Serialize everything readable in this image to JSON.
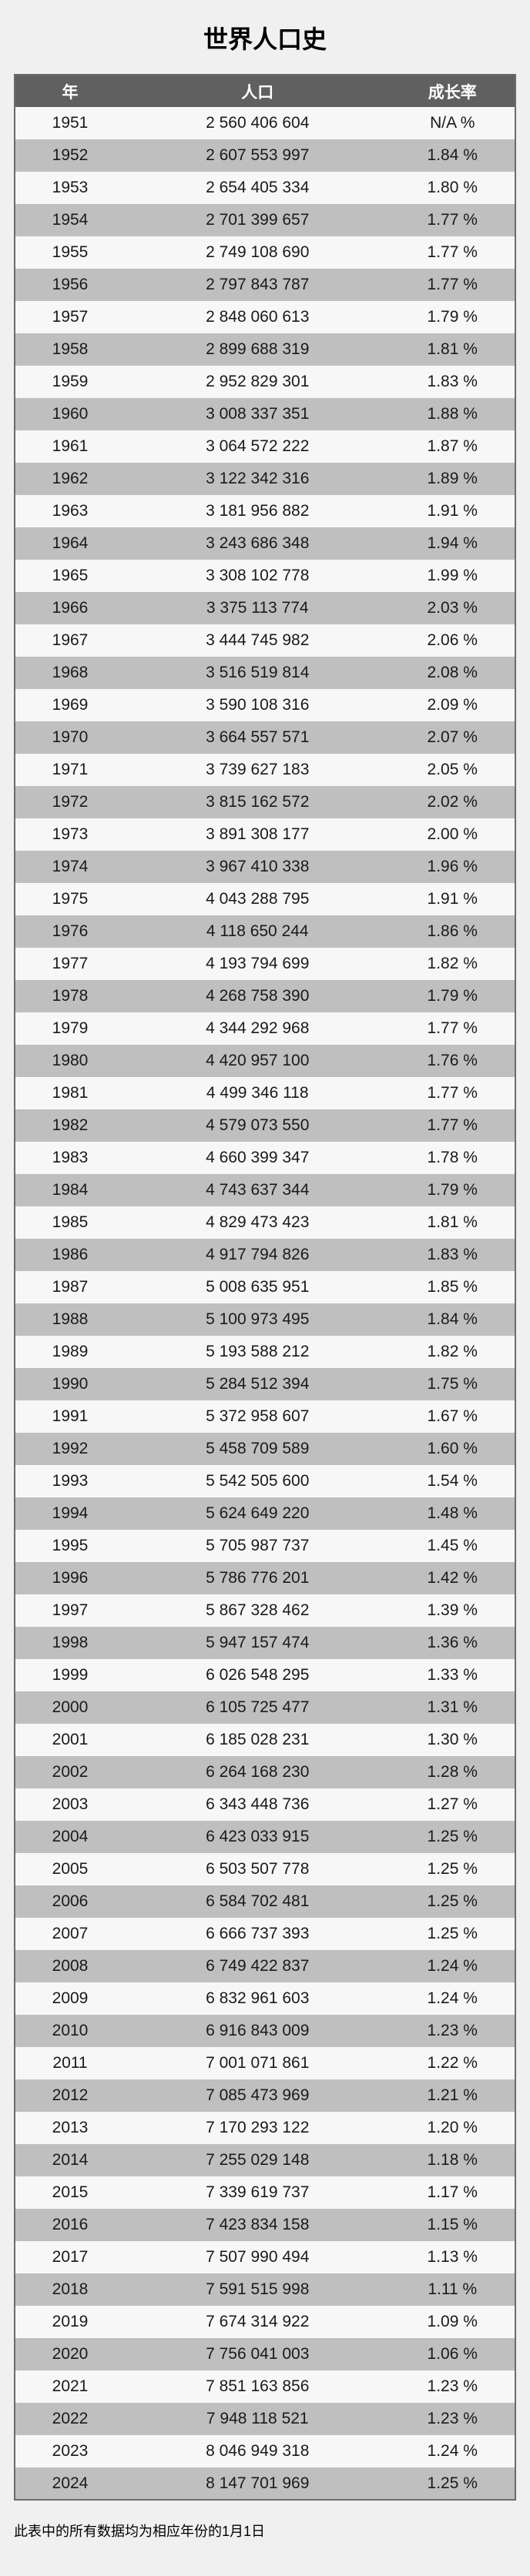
{
  "page": {
    "title": "世界人口史",
    "footnote": "此表中的所有数据均为相应年份的1月1日"
  },
  "colors": {
    "page_bg": "#f0f0f0",
    "header_bg": "#606060",
    "header_text": "#ffffff",
    "row_light": "#f7f7f7",
    "row_dark": "#bfbfbf",
    "border": "#6b6b6b",
    "text": "#1a1a1a"
  },
  "table": {
    "columns": [
      "年",
      "人口",
      "成长率"
    ],
    "rows": [
      {
        "year": "1951",
        "population": "2 560 406 604",
        "growth": "N/A %"
      },
      {
        "year": "1952",
        "population": "2 607 553 997",
        "growth": "1.84 %"
      },
      {
        "year": "1953",
        "population": "2 654 405 334",
        "growth": "1.80 %"
      },
      {
        "year": "1954",
        "population": "2 701 399 657",
        "growth": "1.77 %"
      },
      {
        "year": "1955",
        "population": "2 749 108 690",
        "growth": "1.77 %"
      },
      {
        "year": "1956",
        "population": "2 797 843 787",
        "growth": "1.77 %"
      },
      {
        "year": "1957",
        "population": "2 848 060 613",
        "growth": "1.79 %"
      },
      {
        "year": "1958",
        "population": "2 899 688 319",
        "growth": "1.81 %"
      },
      {
        "year": "1959",
        "population": "2 952 829 301",
        "growth": "1.83 %"
      },
      {
        "year": "1960",
        "population": "3 008 337 351",
        "growth": "1.88 %"
      },
      {
        "year": "1961",
        "population": "3 064 572 222",
        "growth": "1.87 %"
      },
      {
        "year": "1962",
        "population": "3 122 342 316",
        "growth": "1.89 %"
      },
      {
        "year": "1963",
        "population": "3 181 956 882",
        "growth": "1.91 %"
      },
      {
        "year": "1964",
        "population": "3 243 686 348",
        "growth": "1.94 %"
      },
      {
        "year": "1965",
        "population": "3 308 102 778",
        "growth": "1.99 %"
      },
      {
        "year": "1966",
        "population": "3 375 113 774",
        "growth": "2.03 %"
      },
      {
        "year": "1967",
        "population": "3 444 745 982",
        "growth": "2.06 %"
      },
      {
        "year": "1968",
        "population": "3 516 519 814",
        "growth": "2.08 %"
      },
      {
        "year": "1969",
        "population": "3 590 108 316",
        "growth": "2.09 %"
      },
      {
        "year": "1970",
        "population": "3 664 557 571",
        "growth": "2.07 %"
      },
      {
        "year": "1971",
        "population": "3 739 627 183",
        "growth": "2.05 %"
      },
      {
        "year": "1972",
        "population": "3 815 162 572",
        "growth": "2.02 %"
      },
      {
        "year": "1973",
        "population": "3 891 308 177",
        "growth": "2.00 %"
      },
      {
        "year": "1974",
        "population": "3 967 410 338",
        "growth": "1.96 %"
      },
      {
        "year": "1975",
        "population": "4 043 288 795",
        "growth": "1.91 %"
      },
      {
        "year": "1976",
        "population": "4 118 650 244",
        "growth": "1.86 %"
      },
      {
        "year": "1977",
        "population": "4 193 794 699",
        "growth": "1.82 %"
      },
      {
        "year": "1978",
        "population": "4 268 758 390",
        "growth": "1.79 %"
      },
      {
        "year": "1979",
        "population": "4 344 292 968",
        "growth": "1.77 %"
      },
      {
        "year": "1980",
        "population": "4 420 957 100",
        "growth": "1.76 %"
      },
      {
        "year": "1981",
        "population": "4 499 346 118",
        "growth": "1.77 %"
      },
      {
        "year": "1982",
        "population": "4 579 073 550",
        "growth": "1.77 %"
      },
      {
        "year": "1983",
        "population": "4 660 399 347",
        "growth": "1.78 %"
      },
      {
        "year": "1984",
        "population": "4 743 637 344",
        "growth": "1.79 %"
      },
      {
        "year": "1985",
        "population": "4 829 473 423",
        "growth": "1.81 %"
      },
      {
        "year": "1986",
        "population": "4 917 794 826",
        "growth": "1.83 %"
      },
      {
        "year": "1987",
        "population": "5 008 635 951",
        "growth": "1.85 %"
      },
      {
        "year": "1988",
        "population": "5 100 973 495",
        "growth": "1.84 %"
      },
      {
        "year": "1989",
        "population": "5 193 588 212",
        "growth": "1.82 %"
      },
      {
        "year": "1990",
        "population": "5 284 512 394",
        "growth": "1.75 %"
      },
      {
        "year": "1991",
        "population": "5 372 958 607",
        "growth": "1.67 %"
      },
      {
        "year": "1992",
        "population": "5 458 709 589",
        "growth": "1.60 %"
      },
      {
        "year": "1993",
        "population": "5 542 505 600",
        "growth": "1.54 %"
      },
      {
        "year": "1994",
        "population": "5 624 649 220",
        "growth": "1.48 %"
      },
      {
        "year": "1995",
        "population": "5 705 987 737",
        "growth": "1.45 %"
      },
      {
        "year": "1996",
        "population": "5 786 776 201",
        "growth": "1.42 %"
      },
      {
        "year": "1997",
        "population": "5 867 328 462",
        "growth": "1.39 %"
      },
      {
        "year": "1998",
        "population": "5 947 157 474",
        "growth": "1.36 %"
      },
      {
        "year": "1999",
        "population": "6 026 548 295",
        "growth": "1.33 %"
      },
      {
        "year": "2000",
        "population": "6 105 725 477",
        "growth": "1.31 %"
      },
      {
        "year": "2001",
        "population": "6 185 028 231",
        "growth": "1.30 %"
      },
      {
        "year": "2002",
        "population": "6 264 168 230",
        "growth": "1.28 %"
      },
      {
        "year": "2003",
        "population": "6 343 448 736",
        "growth": "1.27 %"
      },
      {
        "year": "2004",
        "population": "6 423 033 915",
        "growth": "1.25 %"
      },
      {
        "year": "2005",
        "population": "6 503 507 778",
        "growth": "1.25 %"
      },
      {
        "year": "2006",
        "population": "6 584 702 481",
        "growth": "1.25 %"
      },
      {
        "year": "2007",
        "population": "6 666 737 393",
        "growth": "1.25 %"
      },
      {
        "year": "2008",
        "population": "6 749 422 837",
        "growth": "1.24 %"
      },
      {
        "year": "2009",
        "population": "6 832 961 603",
        "growth": "1.24 %"
      },
      {
        "year": "2010",
        "population": "6 916 843 009",
        "growth": "1.23 %"
      },
      {
        "year": "2011",
        "population": "7 001 071 861",
        "growth": "1.22 %"
      },
      {
        "year": "2012",
        "population": "7 085 473 969",
        "growth": "1.21 %"
      },
      {
        "year": "2013",
        "population": "7 170 293 122",
        "growth": "1.20 %"
      },
      {
        "year": "2014",
        "population": "7 255 029 148",
        "growth": "1.18 %"
      },
      {
        "year": "2015",
        "population": "7 339 619 737",
        "growth": "1.17 %"
      },
      {
        "year": "2016",
        "population": "7 423 834 158",
        "growth": "1.15 %"
      },
      {
        "year": "2017",
        "population": "7 507 990 494",
        "growth": "1.13 %"
      },
      {
        "year": "2018",
        "population": "7 591 515 998",
        "growth": "1.11 %"
      },
      {
        "year": "2019",
        "population": "7 674 314 922",
        "growth": "1.09 %"
      },
      {
        "year": "2020",
        "population": "7 756 041 003",
        "growth": "1.06 %"
      },
      {
        "year": "2021",
        "population": "7 851 163 856",
        "growth": "1.23 %"
      },
      {
        "year": "2022",
        "population": "7 948 118 521",
        "growth": "1.23 %"
      },
      {
        "year": "2023",
        "population": "8 046 949 318",
        "growth": "1.24 %"
      },
      {
        "year": "2024",
        "population": "8 147 701 969",
        "growth": "1.25 %"
      }
    ]
  }
}
